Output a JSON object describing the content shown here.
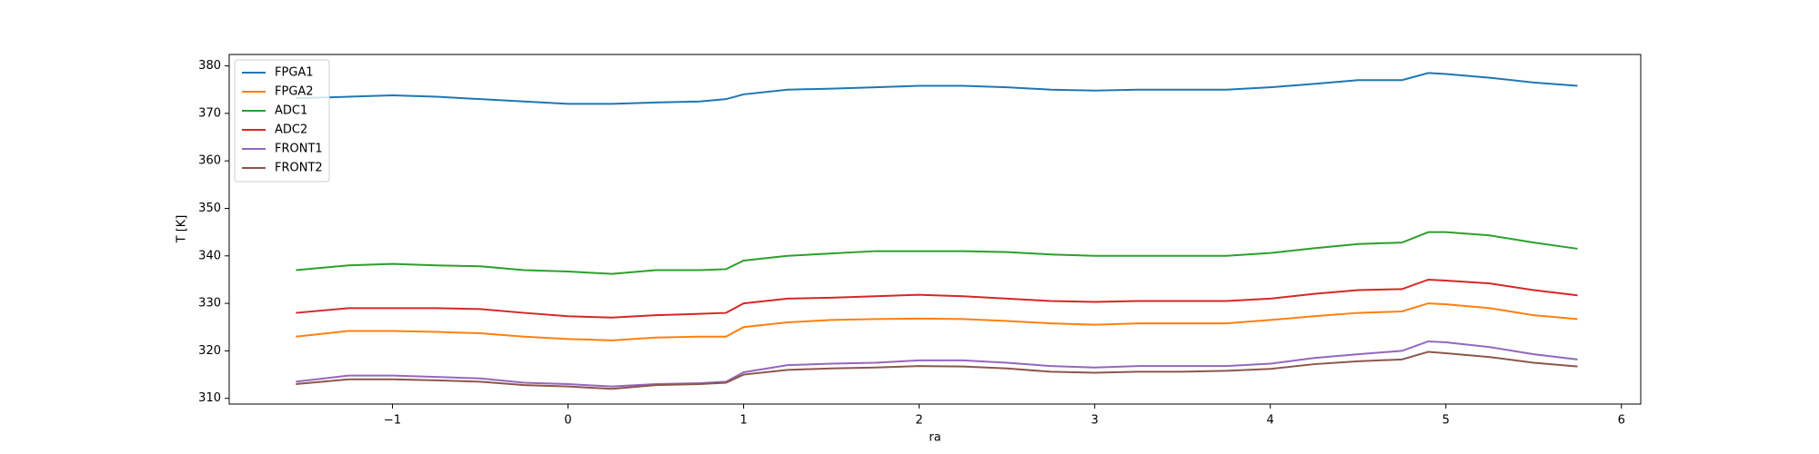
{
  "chart_data": {
    "type": "line",
    "xlabel": "ra",
    "ylabel": "T [K]",
    "x": [
      -1.55,
      -1.25,
      -1.0,
      -0.75,
      -0.5,
      -0.25,
      0,
      0.25,
      0.5,
      0.75,
      0.9,
      1.0,
      1.25,
      1.5,
      1.75,
      2.0,
      2.25,
      2.5,
      2.75,
      3.0,
      3.25,
      3.5,
      3.75,
      4.0,
      4.25,
      4.5,
      4.75,
      4.9,
      5.0,
      5.25,
      5.5,
      5.75
    ],
    "series": [
      {
        "name": "FPGA1",
        "color": "#1f77b4",
        "values": [
          373.2,
          373.5,
          373.8,
          373.5,
          373,
          372.5,
          372,
          372,
          372.3,
          372.5,
          373,
          374,
          375,
          375.2,
          375.5,
          375.8,
          375.8,
          375.5,
          375,
          374.8,
          375,
          375,
          375,
          375.5,
          376.2,
          377,
          377,
          378.5,
          378.3,
          377.5,
          376.5,
          375.8
        ]
      },
      {
        "name": "FPGA2",
        "color": "#ff7f0e",
        "values": [
          323,
          324.2,
          324.2,
          324,
          323.7,
          323,
          322.5,
          322.2,
          322.8,
          323,
          323,
          325,
          326,
          326.5,
          326.7,
          326.8,
          326.7,
          326.3,
          325.8,
          325.5,
          325.8,
          325.8,
          325.8,
          326.5,
          327.3,
          328,
          328.3,
          330,
          329.8,
          329,
          327.5,
          326.7
        ]
      },
      {
        "name": "ADC1",
        "color": "#2ca02c",
        "values": [
          337,
          338,
          338.3,
          338,
          337.8,
          337,
          336.7,
          336.2,
          337,
          337,
          337.2,
          339,
          340,
          340.5,
          341,
          341,
          341,
          340.8,
          340.3,
          340,
          340,
          340,
          340,
          340.6,
          341.6,
          342.5,
          342.8,
          345,
          345,
          344.3,
          342.8,
          341.5
        ]
      },
      {
        "name": "ADC2",
        "color": "#d62728",
        "values": [
          328,
          329,
          329,
          329,
          328.8,
          328,
          327.3,
          327,
          327.5,
          327.8,
          328,
          330,
          331,
          331.2,
          331.5,
          331.8,
          331.5,
          331,
          330.5,
          330.3,
          330.5,
          330.5,
          330.5,
          331,
          332,
          332.8,
          333,
          335,
          334.8,
          334.2,
          332.8,
          331.7
        ]
      },
      {
        "name": "FRONT1",
        "color": "#9467bd",
        "values": [
          313.5,
          314.8,
          314.8,
          314.5,
          314.2,
          313.3,
          313,
          312.5,
          313,
          313.2,
          313.5,
          315.5,
          317,
          317.3,
          317.5,
          318,
          318,
          317.5,
          316.8,
          316.5,
          316.8,
          316.8,
          316.8,
          317.3,
          318.5,
          319.3,
          320,
          322,
          321.8,
          320.8,
          319.3,
          318.2
        ]
      },
      {
        "name": "FRONT2",
        "color": "#8c564b",
        "values": [
          313,
          314,
          314,
          313.8,
          313.5,
          312.8,
          312.5,
          312,
          312.8,
          313,
          313.3,
          315,
          316,
          316.3,
          316.5,
          316.8,
          316.7,
          316.3,
          315.6,
          315.4,
          315.6,
          315.6,
          315.8,
          316.2,
          317.2,
          317.8,
          318.2,
          319.8,
          319.5,
          318.7,
          317.5,
          316.7
        ]
      }
    ],
    "xlim": [
      -1.93,
      6.11
    ],
    "xticks": [
      {
        "value": -1,
        "label": "−1"
      },
      0,
      1,
      2,
      3,
      4,
      5,
      6
    ],
    "ylim": [
      308.8,
      382.4
    ],
    "yticks": [
      310,
      320,
      330,
      340,
      350,
      360,
      370,
      380
    ],
    "legend": "upper left"
  }
}
